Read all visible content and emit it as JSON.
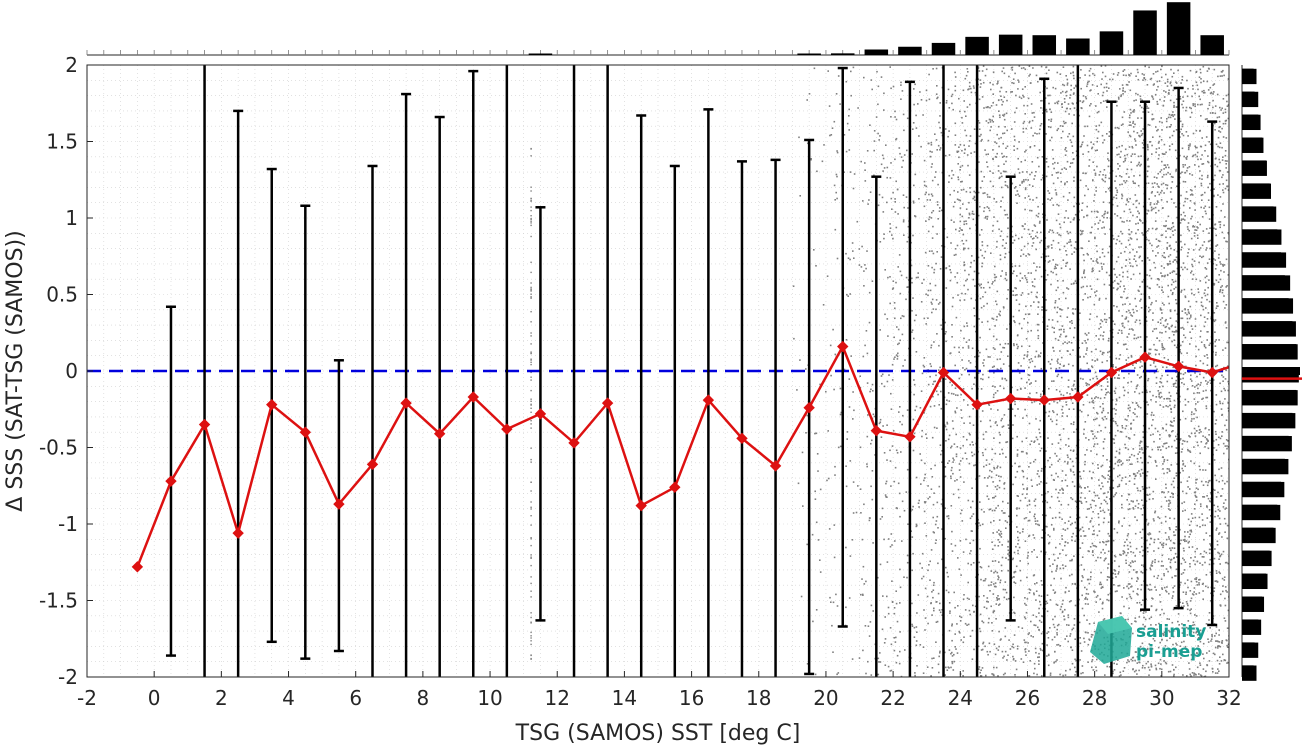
{
  "chart_data": {
    "type": "scatter",
    "xlabel": "TSG (SAMOS) SST [deg C]",
    "ylabel": "Δ SSS (SAT-TSG (SAMOS))",
    "xlim": [
      -2,
      32
    ],
    "ylim": [
      -2,
      2
    ],
    "xticks": [
      "-2",
      "0",
      "2",
      "4",
      "6",
      "8",
      "10",
      "12",
      "14",
      "16",
      "18",
      "20",
      "22",
      "24",
      "26",
      "28",
      "30",
      "32"
    ],
    "yticks": [
      "-2",
      "-1.5",
      "-1",
      "-0.5",
      "0",
      "0.5",
      "1",
      "1.5",
      "2"
    ],
    "grid": true,
    "reference_line": {
      "y": 0,
      "style": "dashed",
      "color": "#0000dd"
    },
    "median_marker_y": -0.05,
    "series": [
      {
        "kind": "binned_mean_with_std",
        "color": "#dd1111",
        "points": [
          {
            "x": -0.5,
            "y": -1.28,
            "lo": null,
            "hi": null
          },
          {
            "x": 0.5,
            "y": -0.72,
            "lo": -1.86,
            "hi": 0.42
          },
          {
            "x": 1.5,
            "y": -0.35,
            "lo": -2.0,
            "hi": 2.0
          },
          {
            "x": 2.5,
            "y": -1.06,
            "lo": -2.0,
            "hi": 1.7
          },
          {
            "x": 3.5,
            "y": -0.22,
            "lo": -1.77,
            "hi": 1.32
          },
          {
            "x": 4.5,
            "y": -0.4,
            "lo": -1.88,
            "hi": 1.08
          },
          {
            "x": 5.5,
            "y": -0.87,
            "lo": -1.83,
            "hi": 0.07
          },
          {
            "x": 6.5,
            "y": -0.61,
            "lo": -2.0,
            "hi": 1.34
          },
          {
            "x": 7.5,
            "y": -0.21,
            "lo": -2.0,
            "hi": 1.81
          },
          {
            "x": 8.5,
            "y": -0.41,
            "lo": -2.0,
            "hi": 1.66
          },
          {
            "x": 9.5,
            "y": -0.17,
            "lo": -2.0,
            "hi": 1.96
          },
          {
            "x": 10.5,
            "y": -0.38,
            "lo": -2.0,
            "hi": 2.0
          },
          {
            "x": 11.5,
            "y": -0.28,
            "lo": -1.63,
            "hi": 1.07
          },
          {
            "x": 12.5,
            "y": -0.47,
            "lo": -2.0,
            "hi": 2.0
          },
          {
            "x": 13.5,
            "y": -0.21,
            "lo": -2.0,
            "hi": 2.0
          },
          {
            "x": 14.5,
            "y": -0.88,
            "lo": -2.0,
            "hi": 1.67
          },
          {
            "x": 15.5,
            "y": -0.76,
            "lo": -2.0,
            "hi": 1.34
          },
          {
            "x": 16.5,
            "y": -0.19,
            "lo": -2.0,
            "hi": 1.71
          },
          {
            "x": 17.5,
            "y": -0.44,
            "lo": -2.0,
            "hi": 1.37
          },
          {
            "x": 18.5,
            "y": -0.62,
            "lo": -2.0,
            "hi": 1.38
          },
          {
            "x": 19.5,
            "y": -0.24,
            "lo": -1.98,
            "hi": 1.51
          },
          {
            "x": 20.5,
            "y": 0.16,
            "lo": -1.67,
            "hi": 1.98
          },
          {
            "x": 21.5,
            "y": -0.39,
            "lo": -2.0,
            "hi": 1.27
          },
          {
            "x": 22.5,
            "y": -0.43,
            "lo": -2.0,
            "hi": 1.89
          },
          {
            "x": 23.5,
            "y": -0.01,
            "lo": -2.0,
            "hi": 2.0
          },
          {
            "x": 24.5,
            "y": -0.22,
            "lo": -2.0,
            "hi": 2.0
          },
          {
            "x": 25.5,
            "y": -0.18,
            "lo": -1.63,
            "hi": 1.27
          },
          {
            "x": 26.5,
            "y": -0.19,
            "lo": -2.0,
            "hi": 1.91
          },
          {
            "x": 27.5,
            "y": -0.17,
            "lo": -2.0,
            "hi": 2.0
          },
          {
            "x": 28.5,
            "y": -0.01,
            "lo": -2.0,
            "hi": 1.76
          },
          {
            "x": 29.5,
            "y": 0.09,
            "lo": -1.56,
            "hi": 1.76
          },
          {
            "x": 30.5,
            "y": 0.03,
            "lo": -1.55,
            "hi": 1.85
          },
          {
            "x": 31.5,
            "y": -0.01,
            "lo": -1.66,
            "hi": 1.63
          },
          {
            "x": 32.5,
            "y": 0.06,
            "lo": null,
            "hi": null
          }
        ]
      }
    ],
    "top_histogram": {
      "bins_x": [
        -1.5,
        -0.5,
        0.5,
        1.5,
        2.5,
        3.5,
        4.5,
        5.5,
        6.5,
        7.5,
        8.5,
        9.5,
        10.5,
        11.5,
        12.5,
        13.5,
        14.5,
        15.5,
        16.5,
        17.5,
        18.5,
        19.5,
        20.5,
        21.5,
        22.5,
        23.5,
        24.5,
        25.5,
        26.5,
        27.5,
        28.5,
        29.5,
        30.5,
        31.5
      ],
      "rel_counts": [
        0,
        0,
        0,
        0,
        0,
        0,
        0,
        0,
        0,
        0,
        0,
        0,
        0,
        0.01,
        0,
        0,
        0,
        0,
        0,
        0,
        0,
        0.01,
        0.03,
        0.1,
        0.15,
        0.22,
        0.33,
        0.37,
        0.36,
        0.3,
        0.43,
        0.81,
        0.96,
        0.36
      ]
    },
    "right_histogram": {
      "bins_y": [
        1.925,
        1.775,
        1.625,
        1.475,
        1.325,
        1.175,
        1.025,
        0.875,
        0.725,
        0.575,
        0.425,
        0.275,
        0.125,
        -0.025,
        -0.175,
        -0.325,
        -0.475,
        -0.625,
        -0.775,
        -0.925,
        -1.075,
        -1.225,
        -1.375,
        -1.525,
        -1.675,
        -1.825,
        -1.975
      ],
      "rel_counts": [
        0.25,
        0.28,
        0.32,
        0.37,
        0.43,
        0.5,
        0.59,
        0.68,
        0.76,
        0.83,
        0.88,
        0.93,
        0.96,
        0.98,
        0.96,
        0.92,
        0.86,
        0.8,
        0.73,
        0.66,
        0.58,
        0.51,
        0.44,
        0.38,
        0.33,
        0.28,
        0.25
      ]
    },
    "scatter_density": {
      "color": "#808080",
      "columns": [
        {
          "x0": 19.0,
          "x1": 20.0,
          "density": 0.05
        },
        {
          "x0": 20.0,
          "x1": 21.0,
          "density": 0.12
        },
        {
          "x0": 21.0,
          "x1": 22.0,
          "density": 0.22
        },
        {
          "x0": 22.0,
          "x1": 23.0,
          "density": 0.3
        },
        {
          "x0": 23.0,
          "x1": 24.0,
          "density": 0.45
        },
        {
          "x0": 24.0,
          "x1": 25.0,
          "density": 0.55
        },
        {
          "x0": 25.0,
          "x1": 26.0,
          "density": 0.62
        },
        {
          "x0": 26.0,
          "x1": 27.0,
          "density": 0.65
        },
        {
          "x0": 27.0,
          "x1": 28.0,
          "density": 0.7
        },
        {
          "x0": 28.0,
          "x1": 29.0,
          "density": 0.78
        },
        {
          "x0": 29.0,
          "x1": 30.0,
          "density": 0.88
        },
        {
          "x0": 30.0,
          "x1": 31.0,
          "density": 0.92
        },
        {
          "x0": 31.0,
          "x1": 32.0,
          "density": 0.85
        }
      ],
      "streak_x": 11.2
    },
    "logo": {
      "line1": "salinity",
      "line2": "pi-mep"
    }
  }
}
